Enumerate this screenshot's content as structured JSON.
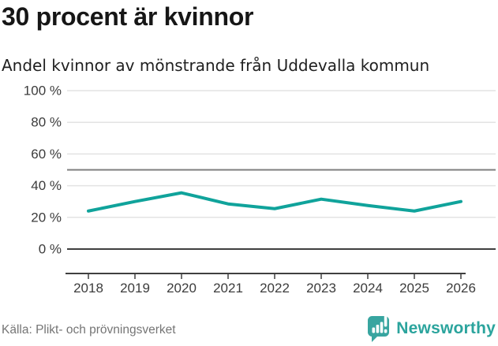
{
  "header": {
    "title": "30 procent är kvinnor",
    "subtitle": "Andel kvinnor av mönstrande från Uddevalla kommun"
  },
  "chart_data": {
    "type": "line",
    "title": "30 procent är kvinnor",
    "subtitle": "Andel kvinnor av mönstrande från Uddevalla kommun",
    "x": [
      2018,
      2019,
      2020,
      2021,
      2022,
      2023,
      2024,
      2025,
      2026
    ],
    "series": [
      {
        "name": "Andel kvinnor av mönstrande",
        "color": "#10a39b",
        "values": [
          24,
          30,
          35.5,
          28.5,
          25.5,
          31.5,
          27.5,
          24,
          30
        ]
      }
    ],
    "ylim": [
      0,
      100
    ],
    "yticks": [
      0,
      20,
      40,
      60,
      80,
      100
    ],
    "ytick_suffix": " %",
    "reference_line": 50,
    "grid": "horizontal",
    "legend": "none"
  },
  "footer": {
    "source": "Källa: Plikt- och prövningsverket",
    "brand": "Newsworthy"
  },
  "colors": {
    "accent": "#10a39b",
    "grid": "#e3e3e3",
    "axis": "#3f3f3f",
    "reference": "#7f7f7f",
    "tick_text": "#3c3c3c",
    "brand": "#2ba49d",
    "badge": "#38a5a0"
  }
}
